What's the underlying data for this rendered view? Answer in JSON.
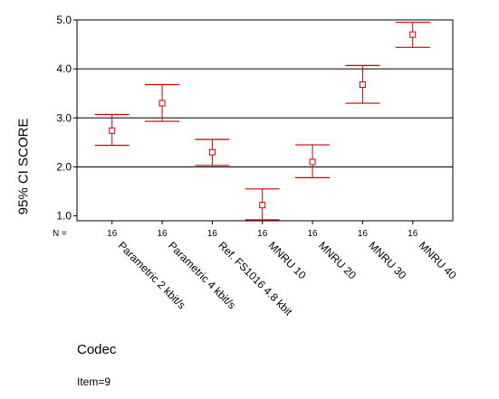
{
  "chart_data": {
    "type": "errorbar",
    "ylabel": "95% CI SCORE",
    "xlabel": "Codec",
    "footnote": "Item=9",
    "n_label": "N =",
    "ylim": [
      0.9,
      5.0
    ],
    "yticks": [
      "1.0",
      "2.0",
      "3.0",
      "4.0",
      "5.0"
    ],
    "ytick_values": [
      1.0,
      2.0,
      3.0,
      4.0,
      5.0
    ],
    "gridlines": [
      2.0,
      3.0,
      4.0
    ],
    "series_color": "#cc0000",
    "categories": [
      "Parametric 2 kbit/s",
      "Parametric 4 kbit/s",
      "Ref. FS1016 4.8 kbit",
      "MNRU 10",
      "MNRU 20",
      "MNRU 30",
      "MNRU 40"
    ],
    "n": [
      "16",
      "16",
      "16",
      "16",
      "16",
      "16",
      "16"
    ],
    "mean": [
      2.74,
      3.3,
      2.3,
      1.22,
      2.1,
      3.68,
      4.7
    ],
    "lower": [
      2.44,
      2.93,
      2.03,
      0.92,
      1.78,
      3.3,
      4.44
    ],
    "upper": [
      3.07,
      3.68,
      2.56,
      1.55,
      2.45,
      4.07,
      4.95
    ]
  }
}
